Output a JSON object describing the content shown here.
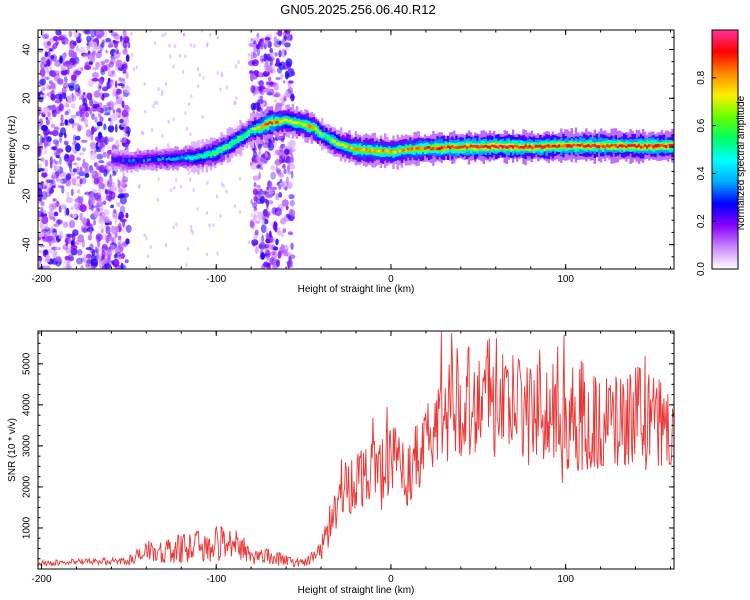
{
  "title": "GN05.2025.256.06.40.R12",
  "chart_data": [
    {
      "type": "heatmap",
      "xlabel": "Height of straight line (km)",
      "ylabel": "Frequency (Hz)",
      "xlim": [
        -202,
        162
      ],
      "ylim": [
        -50,
        48
      ],
      "xticks": [
        -200,
        -100,
        0,
        100
      ],
      "yticks": [
        -40,
        -20,
        0,
        20,
        40
      ],
      "colorbar": {
        "label": "Normalized spectral amplitude",
        "range": [
          0,
          1
        ],
        "ticks": [
          "0.0",
          "0.2",
          "0.4",
          "0.6",
          "0.8"
        ],
        "colormap": [
          "#ffffff",
          "#cc88ff",
          "#8800ff",
          "#0000ff",
          "#00aaff",
          "#00ffff",
          "#00ff66",
          "#66ff00",
          "#ffee00",
          "#ff8800",
          "#ff0000",
          "#ff3399"
        ]
      },
      "ridge": {
        "x": [
          -160,
          -150,
          -140,
          -130,
          -120,
          -110,
          -100,
          -90,
          -80,
          -75,
          -70,
          -60,
          -50,
          -45,
          -40,
          -35,
          -30,
          -25,
          -20,
          -10,
          0,
          10,
          20,
          40,
          60,
          80,
          100,
          120,
          140,
          160
        ],
        "y": [
          -5,
          -6,
          -5,
          -5,
          -4.5,
          -4,
          -2,
          2,
          7,
          8,
          10,
          11,
          9,
          8,
          5,
          3,
          1,
          0,
          -1,
          -1.5,
          -2,
          -1,
          -0.5,
          0,
          0.3,
          0,
          0.5,
          0.5,
          0.3,
          0.5
        ],
        "peak": [
          0.25,
          0.3,
          0.3,
          0.35,
          0.4,
          0.5,
          0.6,
          0.6,
          0.6,
          0.8,
          0.9,
          0.7,
          0.75,
          0.8,
          0.6,
          0.65,
          0.7,
          0.75,
          0.8,
          0.8,
          0.75,
          0.8,
          0.85,
          0.9,
          0.95,
          0.9,
          0.9,
          0.9,
          0.9,
          0.9
        ]
      },
      "noise_bands_x": [
        [
          -202,
          -150
        ],
        [
          -80,
          -56
        ]
      ]
    },
    {
      "type": "line",
      "xlabel": "Height of straight line (km)",
      "ylabel": "SNR (10 * v/v)",
      "xlim": [
        -202,
        162
      ],
      "ylim": [
        0,
        5800
      ],
      "xticks": [
        -200,
        -100,
        0,
        100
      ],
      "yticks": [
        1000,
        2000,
        3000,
        4000,
        5000
      ],
      "color": "#ee3333",
      "envelope": {
        "x": [
          -202,
          -150,
          -140,
          -120,
          -100,
          -90,
          -80,
          -70,
          -60,
          -50,
          -40,
          -35,
          -30,
          -20,
          -10,
          0,
          10,
          20,
          30,
          40,
          60,
          80,
          100,
          120,
          140,
          162
        ],
        "y": [
          150,
          200,
          400,
          500,
          600,
          700,
          350,
          300,
          200,
          150,
          450,
          1000,
          1700,
          2200,
          2500,
          2700,
          2300,
          3000,
          3900,
          4200,
          4100,
          3800,
          3700,
          3500,
          3700,
          3300
        ]
      }
    }
  ]
}
